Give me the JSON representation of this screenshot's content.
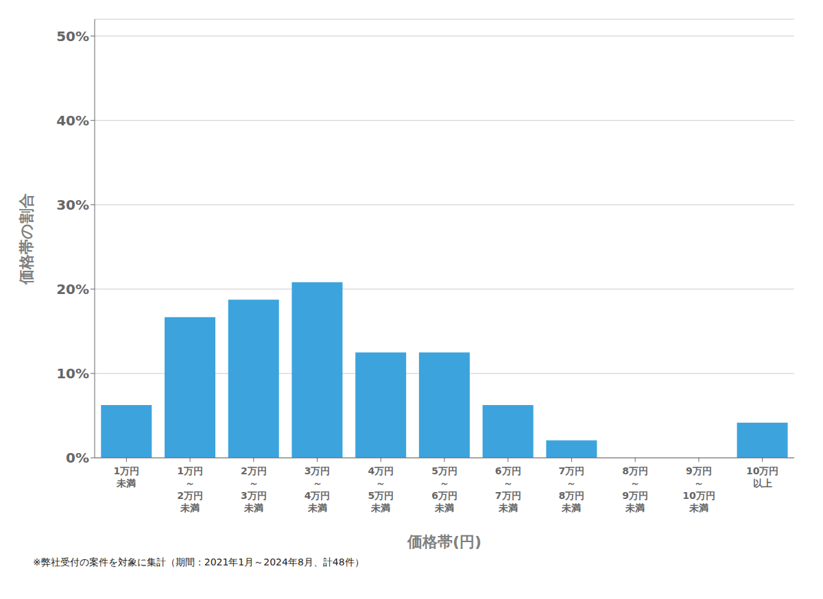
{
  "chart_data": {
    "type": "bar",
    "categories": [
      "1万円\n未満",
      "1万円\n～\n2万円\n未満",
      "2万円\n～\n3万円\n未満",
      "3万円\n～\n4万円\n未満",
      "4万円\n～\n5万円\n未満",
      "5万円\n～\n6万円\n未満",
      "6万円\n～\n7万円\n未満",
      "7万円\n～\n8万円\n未満",
      "8万円\n～\n9万円\n未満",
      "9万円\n～\n10万円\n未満",
      "10万円\n以上"
    ],
    "values": [
      6.25,
      16.67,
      18.75,
      20.83,
      12.5,
      12.5,
      6.25,
      2.08,
      0.0,
      0.0,
      4.17
    ],
    "color": "#3ca3dc",
    "x_label": "価格帯(円)",
    "y_label": "価格帯の割合",
    "annotations": [
      "※弊社受付の案件を対象に集計（期間：2021年1月～2024年8月、計48件）"
    ],
    "ylim": [
      0,
      52
    ],
    "yticks": [
      {
        "value": 0,
        "label": "0%"
      },
      {
        "value": 10,
        "label": "10%"
      },
      {
        "value": 20,
        "label": "20%"
      },
      {
        "value": 30,
        "label": "30%"
      },
      {
        "value": 40,
        "label": "40%"
      },
      {
        "value": 50,
        "label": "50%"
      }
    ],
    "grid": true
  }
}
